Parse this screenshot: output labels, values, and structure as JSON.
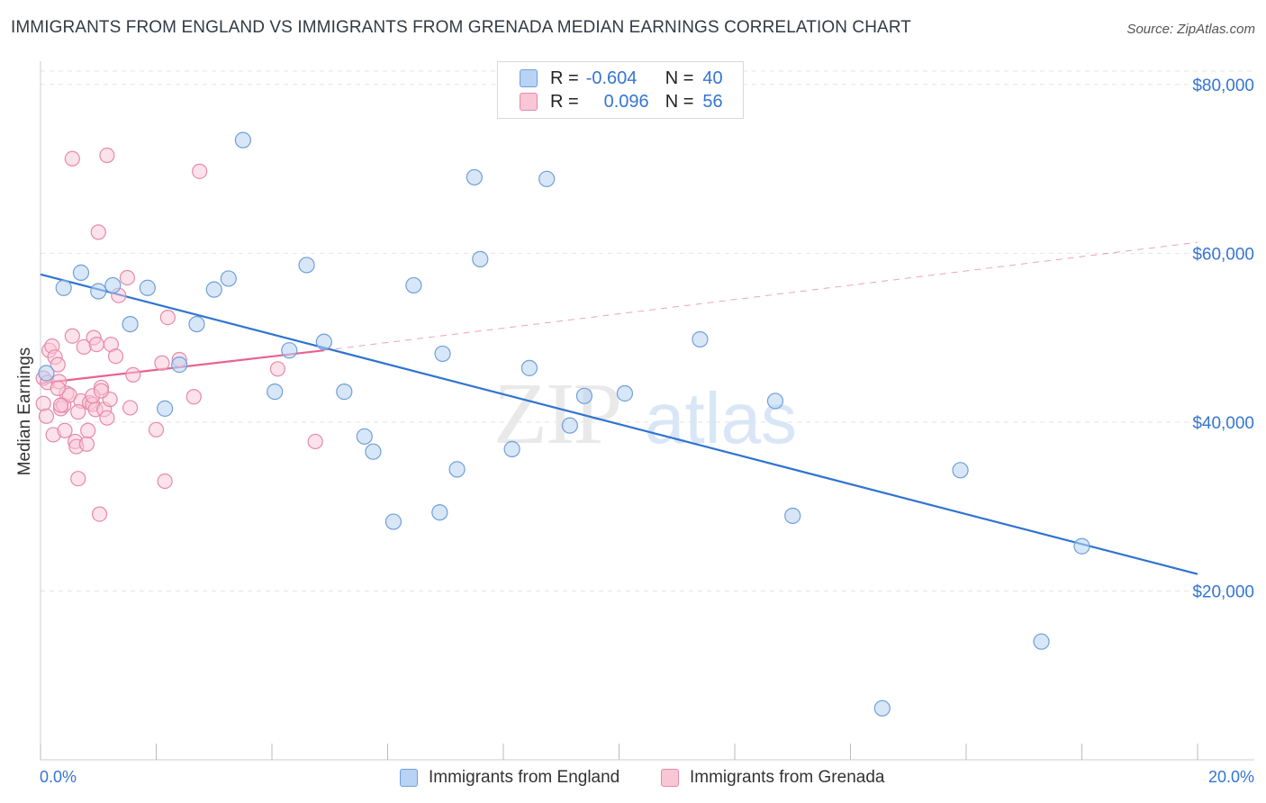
{
  "header": {
    "title": "IMMIGRANTS FROM ENGLAND VS IMMIGRANTS FROM GRENADA MEDIAN EARNINGS CORRELATION CHART",
    "source": "Source: ZipAtlas.com"
  },
  "legend": {
    "rows": [
      {
        "r_label": "R =",
        "r_value": "-0.604",
        "n_label": "N =",
        "n_value": "40"
      },
      {
        "r_label": "R =",
        "r_value": "0.096",
        "n_label": "N =",
        "n_value": "56"
      }
    ]
  },
  "bottom_legend": {
    "england": "Immigrants from England",
    "grenada": "Immigrants from Grenada"
  },
  "axes": {
    "ylabel": "Median Earnings",
    "x_min_label": "0.0%",
    "x_max_label": "20.0%",
    "y_tick_labels": [
      "$20,000",
      "$40,000",
      "$60,000",
      "$80,000"
    ]
  },
  "watermark": {
    "zip": "ZIP",
    "atlas": "atlas"
  },
  "colors": {
    "england_fill": "#b8d3f3",
    "england_stroke": "#6f9fd8",
    "england_line": "#2f74d0",
    "grenada_fill": "#f9c6d6",
    "grenada_stroke": "#e58aa8",
    "grenada_line": "#e8638f",
    "tick_label": "#3575d3"
  },
  "chart_data": {
    "type": "scatter",
    "x_unit": "percent",
    "xlim": [
      0,
      20
    ],
    "ylim": [
      0,
      82000
    ],
    "y_ticks": [
      20000,
      40000,
      60000,
      80000
    ],
    "grid": true,
    "series": [
      {
        "name": "Immigrants from England",
        "r": -0.604,
        "n": 40,
        "points": [
          [
            0.1,
            45800
          ],
          [
            0.4,
            55900
          ],
          [
            0.7,
            57700
          ],
          [
            1.0,
            55500
          ],
          [
            1.25,
            56200
          ],
          [
            1.55,
            51600
          ],
          [
            1.85,
            55900
          ],
          [
            2.15,
            41600
          ],
          [
            2.4,
            46800
          ],
          [
            2.7,
            51600
          ],
          [
            3.0,
            55700
          ],
          [
            3.25,
            57000
          ],
          [
            3.5,
            73400
          ],
          [
            4.05,
            43600
          ],
          [
            4.3,
            48500
          ],
          [
            4.6,
            58600
          ],
          [
            4.9,
            49500
          ],
          [
            5.25,
            43600
          ],
          [
            5.6,
            38300
          ],
          [
            5.75,
            36500
          ],
          [
            6.1,
            28200
          ],
          [
            6.45,
            56200
          ],
          [
            6.9,
            29300
          ],
          [
            6.95,
            48100
          ],
          [
            7.2,
            34400
          ],
          [
            7.5,
            69000
          ],
          [
            7.6,
            59300
          ],
          [
            8.15,
            36800
          ],
          [
            8.45,
            46400
          ],
          [
            8.75,
            68800
          ],
          [
            9.15,
            39600
          ],
          [
            9.4,
            43100
          ],
          [
            10.1,
            43400
          ],
          [
            11.4,
            49800
          ],
          [
            12.7,
            42500
          ],
          [
            13.0,
            28900
          ],
          [
            14.55,
            6100
          ],
          [
            15.9,
            34300
          ],
          [
            17.3,
            14000
          ],
          [
            18.0,
            25300
          ]
        ],
        "trend": {
          "x": [
            0,
            20
          ],
          "y": [
            57500,
            22000
          ]
        }
      },
      {
        "name": "Immigrants from Grenada",
        "r": 0.096,
        "n": 56,
        "points": [
          [
            0.05,
            45200
          ],
          [
            0.05,
            42200
          ],
          [
            0.1,
            40700
          ],
          [
            0.12,
            44700
          ],
          [
            0.15,
            48500
          ],
          [
            0.2,
            49000
          ],
          [
            0.22,
            38500
          ],
          [
            0.25,
            47700
          ],
          [
            0.3,
            46800
          ],
          [
            0.32,
            44800
          ],
          [
            0.35,
            41600
          ],
          [
            0.4,
            42000
          ],
          [
            0.42,
            39000
          ],
          [
            0.45,
            43400
          ],
          [
            0.5,
            43200
          ],
          [
            0.55,
            50200
          ],
          [
            0.6,
            37700
          ],
          [
            0.62,
            37100
          ],
          [
            0.65,
            33300
          ],
          [
            0.7,
            42500
          ],
          [
            0.75,
            48900
          ],
          [
            0.8,
            37400
          ],
          [
            0.82,
            39000
          ],
          [
            0.85,
            42300
          ],
          [
            0.9,
            42100
          ],
          [
            0.92,
            50000
          ],
          [
            0.95,
            41500
          ],
          [
            0.97,
            49200
          ],
          [
            1.0,
            62500
          ],
          [
            1.02,
            29100
          ],
          [
            1.05,
            44100
          ],
          [
            1.1,
            41500
          ],
          [
            1.15,
            40500
          ],
          [
            1.2,
            42700
          ],
          [
            1.22,
            49200
          ],
          [
            1.3,
            47800
          ],
          [
            1.35,
            55000
          ],
          [
            1.5,
            57100
          ],
          [
            1.55,
            41700
          ],
          [
            1.6,
            45600
          ],
          [
            0.55,
            71200
          ],
          [
            1.15,
            71600
          ],
          [
            2.0,
            39100
          ],
          [
            2.1,
            47000
          ],
          [
            2.15,
            33000
          ],
          [
            2.2,
            52400
          ],
          [
            2.4,
            47400
          ],
          [
            2.65,
            43000
          ],
          [
            2.75,
            69700
          ],
          [
            4.1,
            46300
          ],
          [
            4.75,
            37700
          ],
          [
            0.35,
            42000
          ],
          [
            0.65,
            41200
          ],
          [
            0.9,
            43100
          ],
          [
            1.05,
            43700
          ],
          [
            0.3,
            44000
          ]
        ],
        "trend": {
          "x": [
            0,
            4.9
          ],
          "y": [
            44600,
            48500
          ]
        },
        "trend_extension": {
          "x": [
            4.9,
            20
          ],
          "y": [
            48500,
            61300
          ]
        }
      }
    ]
  }
}
